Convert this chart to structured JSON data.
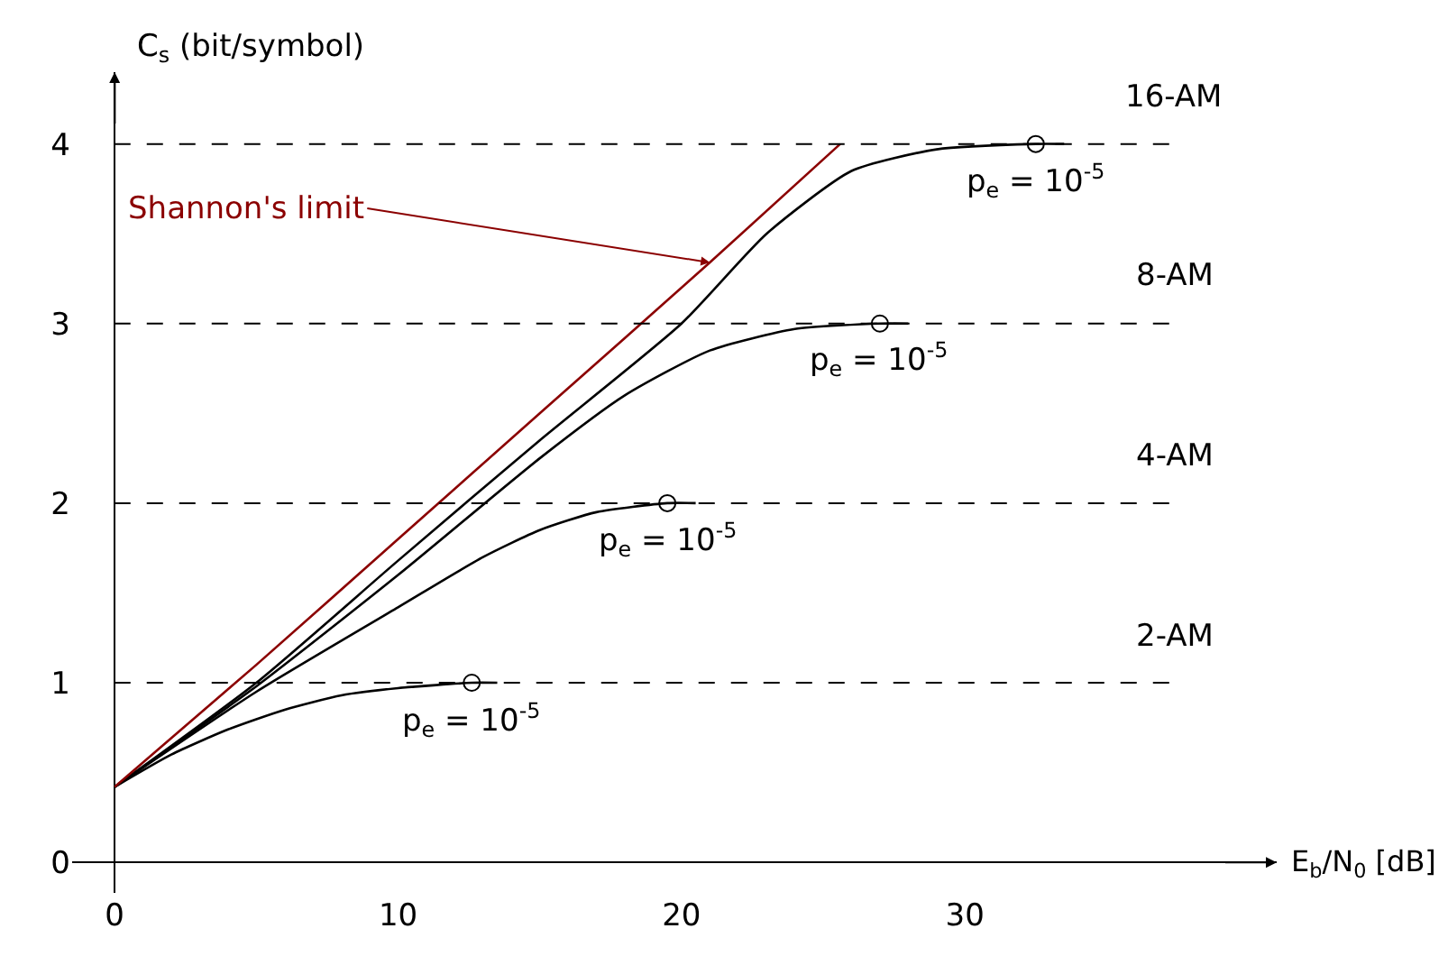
{
  "chart_data": {
    "type": "line",
    "xlabel": "E$_{b}$/N$_{0}$ [dB]",
    "ylabel": "C$_{s}$ (bit/symbol)",
    "xlim": [
      -1.5,
      41
    ],
    "ylim": [
      -0.17,
      4.4
    ],
    "xticks": [
      0,
      10,
      20,
      30
    ],
    "yticks": [
      0,
      1,
      2,
      3,
      4
    ],
    "legend": false,
    "line_style": "solid",
    "marker": "none",
    "series": [
      {
        "color": "#000000",
        "x": [
          0,
          2,
          4,
          6,
          8,
          10,
          12.6,
          13.5
        ],
        "values": [
          0.42,
          0.6,
          0.74,
          0.85,
          0.93,
          0.97,
          1.0,
          1.0
        ]
      },
      {
        "color": "#000000",
        "x": [
          0,
          5,
          10,
          13,
          15,
          17,
          19.5,
          20.5
        ],
        "values": [
          0.42,
          0.95,
          1.42,
          1.7,
          1.85,
          1.95,
          2.0,
          2.0
        ]
      },
      {
        "color": "#000000",
        "x": [
          0,
          5,
          10,
          15,
          18,
          21,
          24,
          27,
          28
        ],
        "values": [
          0.42,
          0.98,
          1.6,
          2.25,
          2.6,
          2.85,
          2.97,
          3.0,
          3.0
        ]
      },
      {
        "color": "#000000",
        "x": [
          0,
          5,
          10,
          15,
          20,
          23,
          26,
          29,
          32.5,
          33.5
        ],
        "values": [
          0.42,
          1.0,
          1.68,
          2.35,
          3.0,
          3.5,
          3.85,
          3.97,
          4.0,
          4.0
        ]
      },
      {
        "name": "Shannon's limit",
        "color": "#8b0000",
        "x": [
          0,
          5,
          10,
          15,
          21,
          25.6
        ],
        "values": [
          0.42,
          1.1,
          1.8,
          2.5,
          3.34,
          4.0
        ]
      },
      {
        "type": "scatter",
        "marker": "circle",
        "color": "#000000",
        "x": [
          12.6,
          19.5,
          27,
          32.5
        ],
        "values": [
          1,
          2,
          3,
          4
        ]
      }
    ],
    "ref_lines": [
      {
        "axis": "y",
        "value": 1,
        "label": "2-AM",
        "color": "#000000",
        "line_style": "dashed"
      },
      {
        "axis": "y",
        "value": 2,
        "label": "4-AM",
        "color": "#000000",
        "line_style": "dashed"
      },
      {
        "axis": "y",
        "value": 3,
        "label": "8-AM",
        "color": "#000000",
        "line_style": "dashed"
      },
      {
        "axis": "y",
        "value": 4,
        "label": "16-AM",
        "color": "#000000",
        "line_style": "dashed"
      }
    ],
    "annotations": [
      {
        "text": "p$_{e}$ = 10$^{-5}$",
        "x": 12.6,
        "y": 1.0
      },
      {
        "text": "p$_{e}$ = 10$^{-5}$",
        "x": 19.5,
        "y": 2.0
      },
      {
        "text": "p$_{e}$ = 10$^{-5}$",
        "x": 27,
        "y": 3.0
      },
      {
        "text": "p$_{e}$ = 10$^{-5}$",
        "x": 32.5,
        "y": 4.0
      }
    ]
  }
}
